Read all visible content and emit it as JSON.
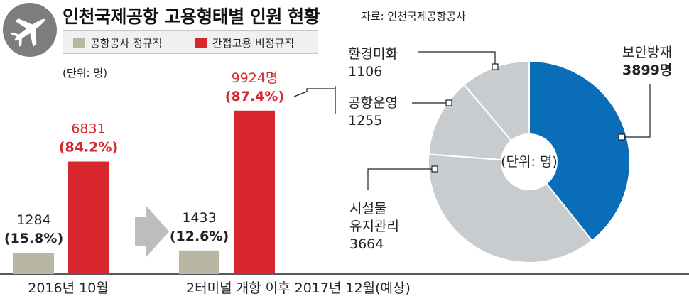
{
  "header": {
    "title": "인천국제공항 고용형태별 인원 현황",
    "source": "자료: 인천국제공항공사",
    "icon": "airplane-icon"
  },
  "legend": {
    "items": [
      {
        "label": "공항공사 정규직",
        "color": "#b9b6a4"
      },
      {
        "label": "간접고용 비정규직",
        "color": "#d7262e"
      }
    ]
  },
  "bar_unit": "(단위: 명)",
  "pie_unit": "(단위: 명)",
  "chart_data": [
    {
      "type": "bar",
      "categories": [
        "2016년 10월",
        "2터미널 개항 이후 2017년 12월(예상)"
      ],
      "series": [
        {
          "name": "공항공사 정규직",
          "values": [
            1284,
            1433
          ],
          "percent_labels": [
            "(15.8%)",
            "(12.6%)"
          ],
          "color": "#b9b6a4"
        },
        {
          "name": "간접고용 비정규직",
          "values": [
            6831,
            9924
          ],
          "percent_labels": [
            "(84.2%)",
            "(87.4%)"
          ],
          "color": "#d7262e"
        }
      ],
      "value_labels": [
        [
          "1284",
          "1433"
        ],
        [
          "6831",
          "9924명"
        ]
      ],
      "ylim": [
        0,
        10000
      ]
    },
    {
      "type": "pie",
      "categories": [
        "보안방재",
        "시설물 유지관리",
        "공항운영",
        "환경미화"
      ],
      "values": [
        3899,
        3664,
        1255,
        1106
      ],
      "labels": [
        "보안방재\n3899명",
        "시설물\n유지관리\n3664",
        "공항운영\n1255",
        "환경미화\n1106"
      ],
      "colors": [
        "#0a6db8",
        "#c8ccce",
        "#c8ccce",
        "#c8ccce"
      ]
    }
  ],
  "colors": {
    "bar_gray": "#b9b6a4",
    "bar_red": "#d7262e",
    "pie_blue": "#0a6db8",
    "pie_gray": "#c8ccce",
    "arrow_gray": "#bdbdbd"
  }
}
